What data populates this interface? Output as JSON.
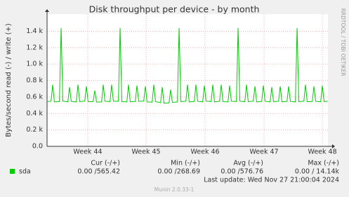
{
  "chart_data": {
    "type": "line",
    "title": "Disk throughput per device - by month",
    "y_label": "Bytes/second read (-) / write (+)",
    "side_label": "RRDTOOL / TOBI OETIKER",
    "xlim": [
      0,
      33.33
    ],
    "xticks": [
      {
        "value": 4.83,
        "label": "Week 44"
      },
      {
        "value": 11.75,
        "label": "Week 45"
      },
      {
        "value": 18.75,
        "label": "Week 46"
      },
      {
        "value": 25.75,
        "label": "Week 47"
      },
      {
        "value": 32.67,
        "label": "Week 48"
      }
    ],
    "ylim": [
      0,
      1600
    ],
    "yticks": [
      {
        "value": 0,
        "label": "0.0"
      },
      {
        "value": 200,
        "label": "0.2 k"
      },
      {
        "value": 400,
        "label": "0.4 k"
      },
      {
        "value": 600,
        "label": "0.6 k"
      },
      {
        "value": 800,
        "label": "0.8 k"
      },
      {
        "value": 1000,
        "label": "1.0 k"
      },
      {
        "value": 1200,
        "label": "1.2 k"
      },
      {
        "value": 1400,
        "label": "1.4 k"
      }
    ],
    "grid": true,
    "x": [
      0,
      0.47,
      0.67,
      0.87,
      1.47,
      1.67,
      1.87,
      2.47,
      2.67,
      2.87,
      3.47,
      3.67,
      3.87,
      4.47,
      4.67,
      4.87,
      5.47,
      5.67,
      5.87,
      6.47,
      6.67,
      6.87,
      7.47,
      7.67,
      7.87,
      8.47,
      8.67,
      8.87,
      9.47,
      9.67,
      9.87,
      10.47,
      10.67,
      10.87,
      11.47,
      11.67,
      11.87,
      12.47,
      12.67,
      12.87,
      13.47,
      13.67,
      13.87,
      14.47,
      14.67,
      14.87,
      15.47,
      15.67,
      15.87,
      16.47,
      16.67,
      16.87,
      17.47,
      17.67,
      17.87,
      18.47,
      18.67,
      18.87,
      19.47,
      19.67,
      19.87,
      20.47,
      20.67,
      20.87,
      21.47,
      21.67,
      21.87,
      22.47,
      22.67,
      22.87,
      23.47,
      23.67,
      23.87,
      24.47,
      24.67,
      24.87,
      25.47,
      25.67,
      25.87,
      26.47,
      26.67,
      26.87,
      27.47,
      27.67,
      27.87,
      28.47,
      28.67,
      28.87,
      29.47,
      29.67,
      29.87,
      30.47,
      30.67,
      30.87,
      31.47,
      31.67,
      31.87,
      32.47,
      32.67,
      32.87,
      33.3
    ],
    "series": [
      {
        "name": "sda",
        "color": "#00cc00",
        "values": [
          545,
          548,
          750,
          540,
          545,
          1440,
          550,
          542,
          720,
          548,
          540,
          750,
          545,
          550,
          730,
          542,
          545,
          680,
          538,
          540,
          750,
          548,
          545,
          750,
          550,
          548,
          1440,
          545,
          540,
          750,
          542,
          545,
          740,
          548,
          550,
          730,
          540,
          538,
          750,
          545,
          530,
          720,
          525,
          528,
          690,
          535,
          540,
          1440,
          545,
          548,
          750,
          540,
          545,
          750,
          548,
          542,
          740,
          550,
          545,
          750,
          540,
          548,
          750,
          545,
          540,
          740,
          548,
          545,
          1440,
          550,
          542,
          750,
          545,
          548,
          730,
          540,
          545,
          740,
          548,
          540,
          720,
          545,
          548,
          730,
          542,
          545,
          730,
          548,
          540,
          1440,
          545,
          548,
          750,
          542,
          545,
          730,
          548,
          542,
          740,
          545,
          548
        ]
      }
    ],
    "stats": {
      "headers": [
        "Cur (-/+)",
        "Min (-/+)",
        "Avg (-/+)",
        "Max (-/+)"
      ],
      "rows": [
        [
          "0.00 /565.42",
          "0.00 /268.69",
          "0.00 /576.76",
          "0.00 / 14.14k"
        ]
      ]
    },
    "last_update": "Last update: Wed Nov 27 21:00:04 2024",
    "footer": "Munin 2.0.33-1"
  }
}
